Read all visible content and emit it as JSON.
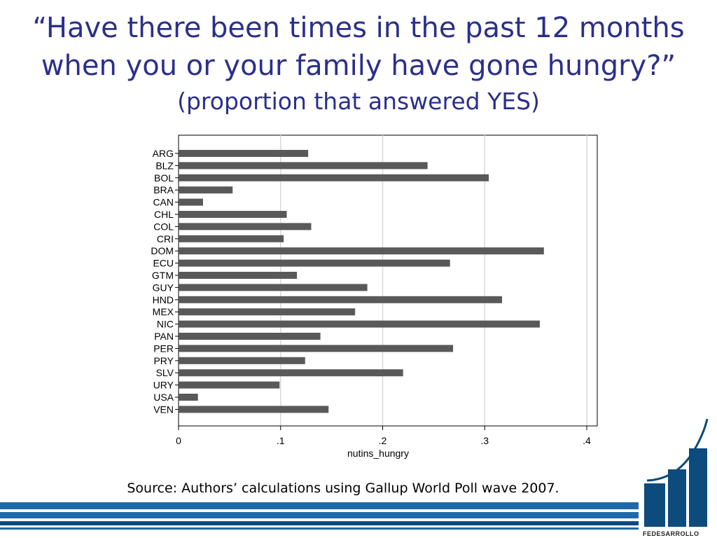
{
  "slide": {
    "title_line1": "“Have there been times in the past 12 months",
    "title_line2": "when you or your family have gone hungry?”",
    "subtitle": "(proportion that answered YES)",
    "source": "Source: Authors’ calculations using Gallup World Poll wave 2007.",
    "logo_text": "FEDESARROLLO"
  },
  "colors": {
    "title": "#2b2f8a",
    "bar": "#595959",
    "stripe": "#1e6aa8",
    "logo": "#0d4b7c"
  },
  "chart_data": {
    "type": "bar",
    "orientation": "horizontal",
    "categories": [
      "ARG",
      "BLZ",
      "BOL",
      "BRA",
      "CAN",
      "CHL",
      "COL",
      "CRI",
      "DOM",
      "ECU",
      "GTM",
      "GUY",
      "HND",
      "MEX",
      "NIC",
      "PAN",
      "PER",
      "PRY",
      "SLV",
      "URY",
      "USA",
      "VEN"
    ],
    "values": [
      0.127,
      0.244,
      0.304,
      0.053,
      0.024,
      0.106,
      0.13,
      0.103,
      0.358,
      0.266,
      0.116,
      0.185,
      0.317,
      0.173,
      0.354,
      0.139,
      0.269,
      0.124,
      0.22,
      0.099,
      0.019,
      0.147
    ],
    "xlabel": "nutins_hungry",
    "xlim": [
      0,
      0.41
    ],
    "xticks": [
      0,
      0.1,
      0.2,
      0.3,
      0.4
    ],
    "xtick_labels": [
      "0",
      ".1",
      ".2",
      ".3",
      ".4"
    ],
    "grid": true,
    "legend": "none"
  }
}
